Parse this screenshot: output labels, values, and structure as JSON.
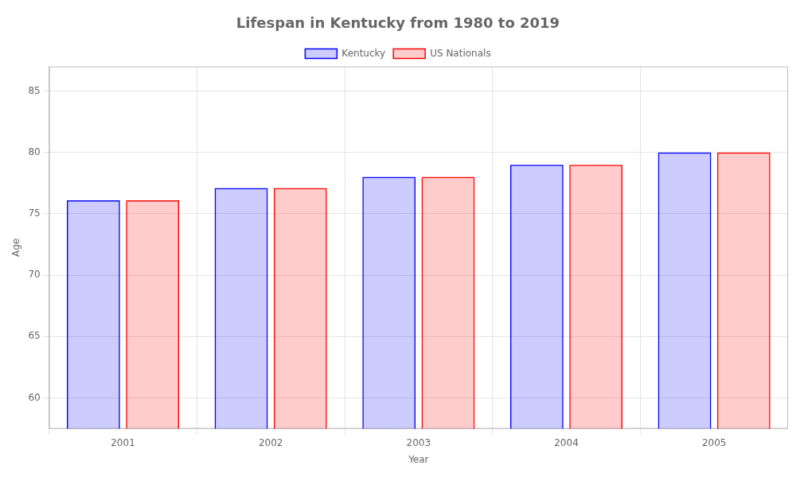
{
  "chart_data": {
    "type": "bar",
    "title": "Lifespan in Kentucky from 1980 to 2019",
    "x_label": "Year",
    "y_label": "Age",
    "categories": [
      "2001",
      "2002",
      "2003",
      "2004",
      "2005"
    ],
    "series": [
      {
        "name": "Kentucky",
        "color": "#0000ff",
        "values": [
          76.1,
          77.1,
          78.0,
          79.0,
          80.0
        ]
      },
      {
        "name": "US Nationals",
        "color": "#ff0000",
        "values": [
          76.1,
          77.1,
          78.0,
          79.0,
          80.0
        ]
      }
    ],
    "ylim": [
      57.5,
      87
    ],
    "yticks": [
      60,
      65,
      70,
      75,
      80,
      85
    ],
    "grid": true,
    "legend": "top"
  }
}
